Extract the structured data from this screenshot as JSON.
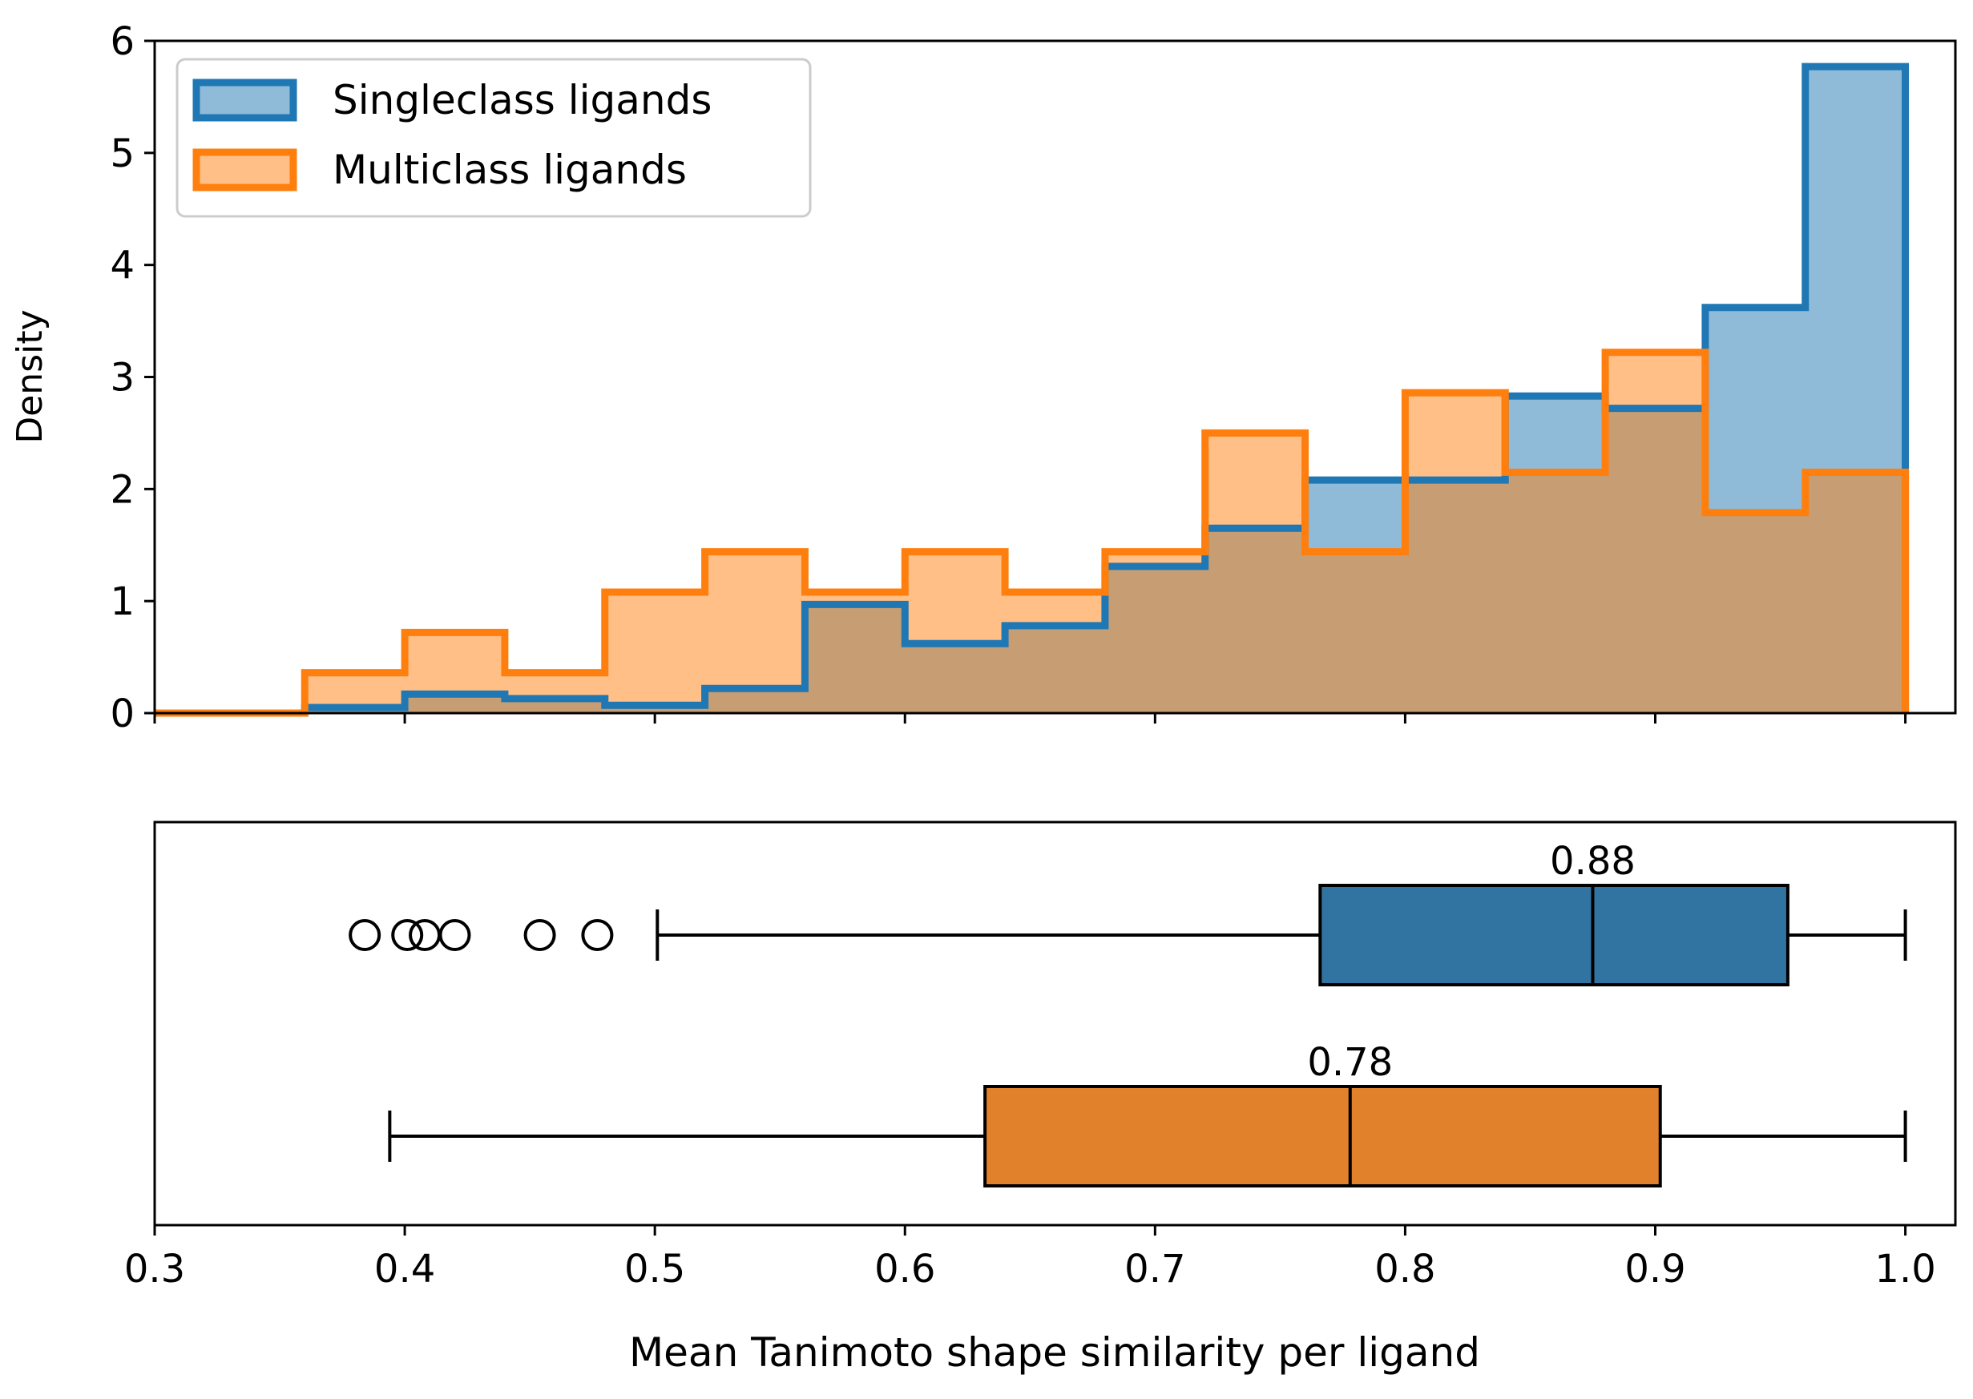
{
  "chart_data": [
    {
      "type": "histogram",
      "ylabel": "Density",
      "xlim": [
        0.3,
        1.02
      ],
      "ylim": [
        0,
        6
      ],
      "yticks": [
        "0",
        "1",
        "2",
        "3",
        "4",
        "5",
        "6"
      ],
      "bin_edges": [
        0.3,
        0.36,
        0.4,
        0.44,
        0.48,
        0.52,
        0.56,
        0.6,
        0.64,
        0.68,
        0.72,
        0.76,
        0.8,
        0.84,
        0.88,
        0.92,
        0.96,
        1.0
      ],
      "series": [
        {
          "name": "Singleclass ligands",
          "color": "#1f77b4",
          "values": [
            0.0,
            0.05,
            0.17,
            0.13,
            0.07,
            0.22,
            0.97,
            0.62,
            0.78,
            1.31,
            1.65,
            2.08,
            2.08,
            2.83,
            2.72,
            3.62,
            5.77
          ]
        },
        {
          "name": "Multiclass ligands",
          "color": "#ff7f0e",
          "values": [
            0.0,
            0.36,
            0.72,
            0.36,
            1.08,
            1.44,
            1.08,
            1.44,
            1.08,
            1.44,
            2.5,
            1.44,
            2.86,
            2.15,
            3.22,
            1.79,
            2.15
          ]
        }
      ]
    },
    {
      "type": "boxplot",
      "xlabel": "Mean Tanimoto shape similarity per ligand",
      "xticks": [
        "0.3",
        "0.4",
        "0.5",
        "0.6",
        "0.7",
        "0.8",
        "0.9",
        "1.0"
      ],
      "boxes": [
        {
          "name": "Singleclass ligands",
          "color": "#3274a1",
          "q1": 0.766,
          "median": 0.875,
          "q3": 0.953,
          "whisker_low": 0.501,
          "whisker_high": 1.0,
          "median_label": "0.88",
          "outliers": [
            0.384,
            0.401,
            0.408,
            0.42,
            0.454,
            0.477
          ]
        },
        {
          "name": "Multiclass ligands",
          "color": "#e1812c",
          "q1": 0.632,
          "median": 0.778,
          "q3": 0.902,
          "whisker_low": 0.394,
          "whisker_high": 1.0,
          "median_label": "0.78",
          "outliers": []
        }
      ]
    }
  ]
}
